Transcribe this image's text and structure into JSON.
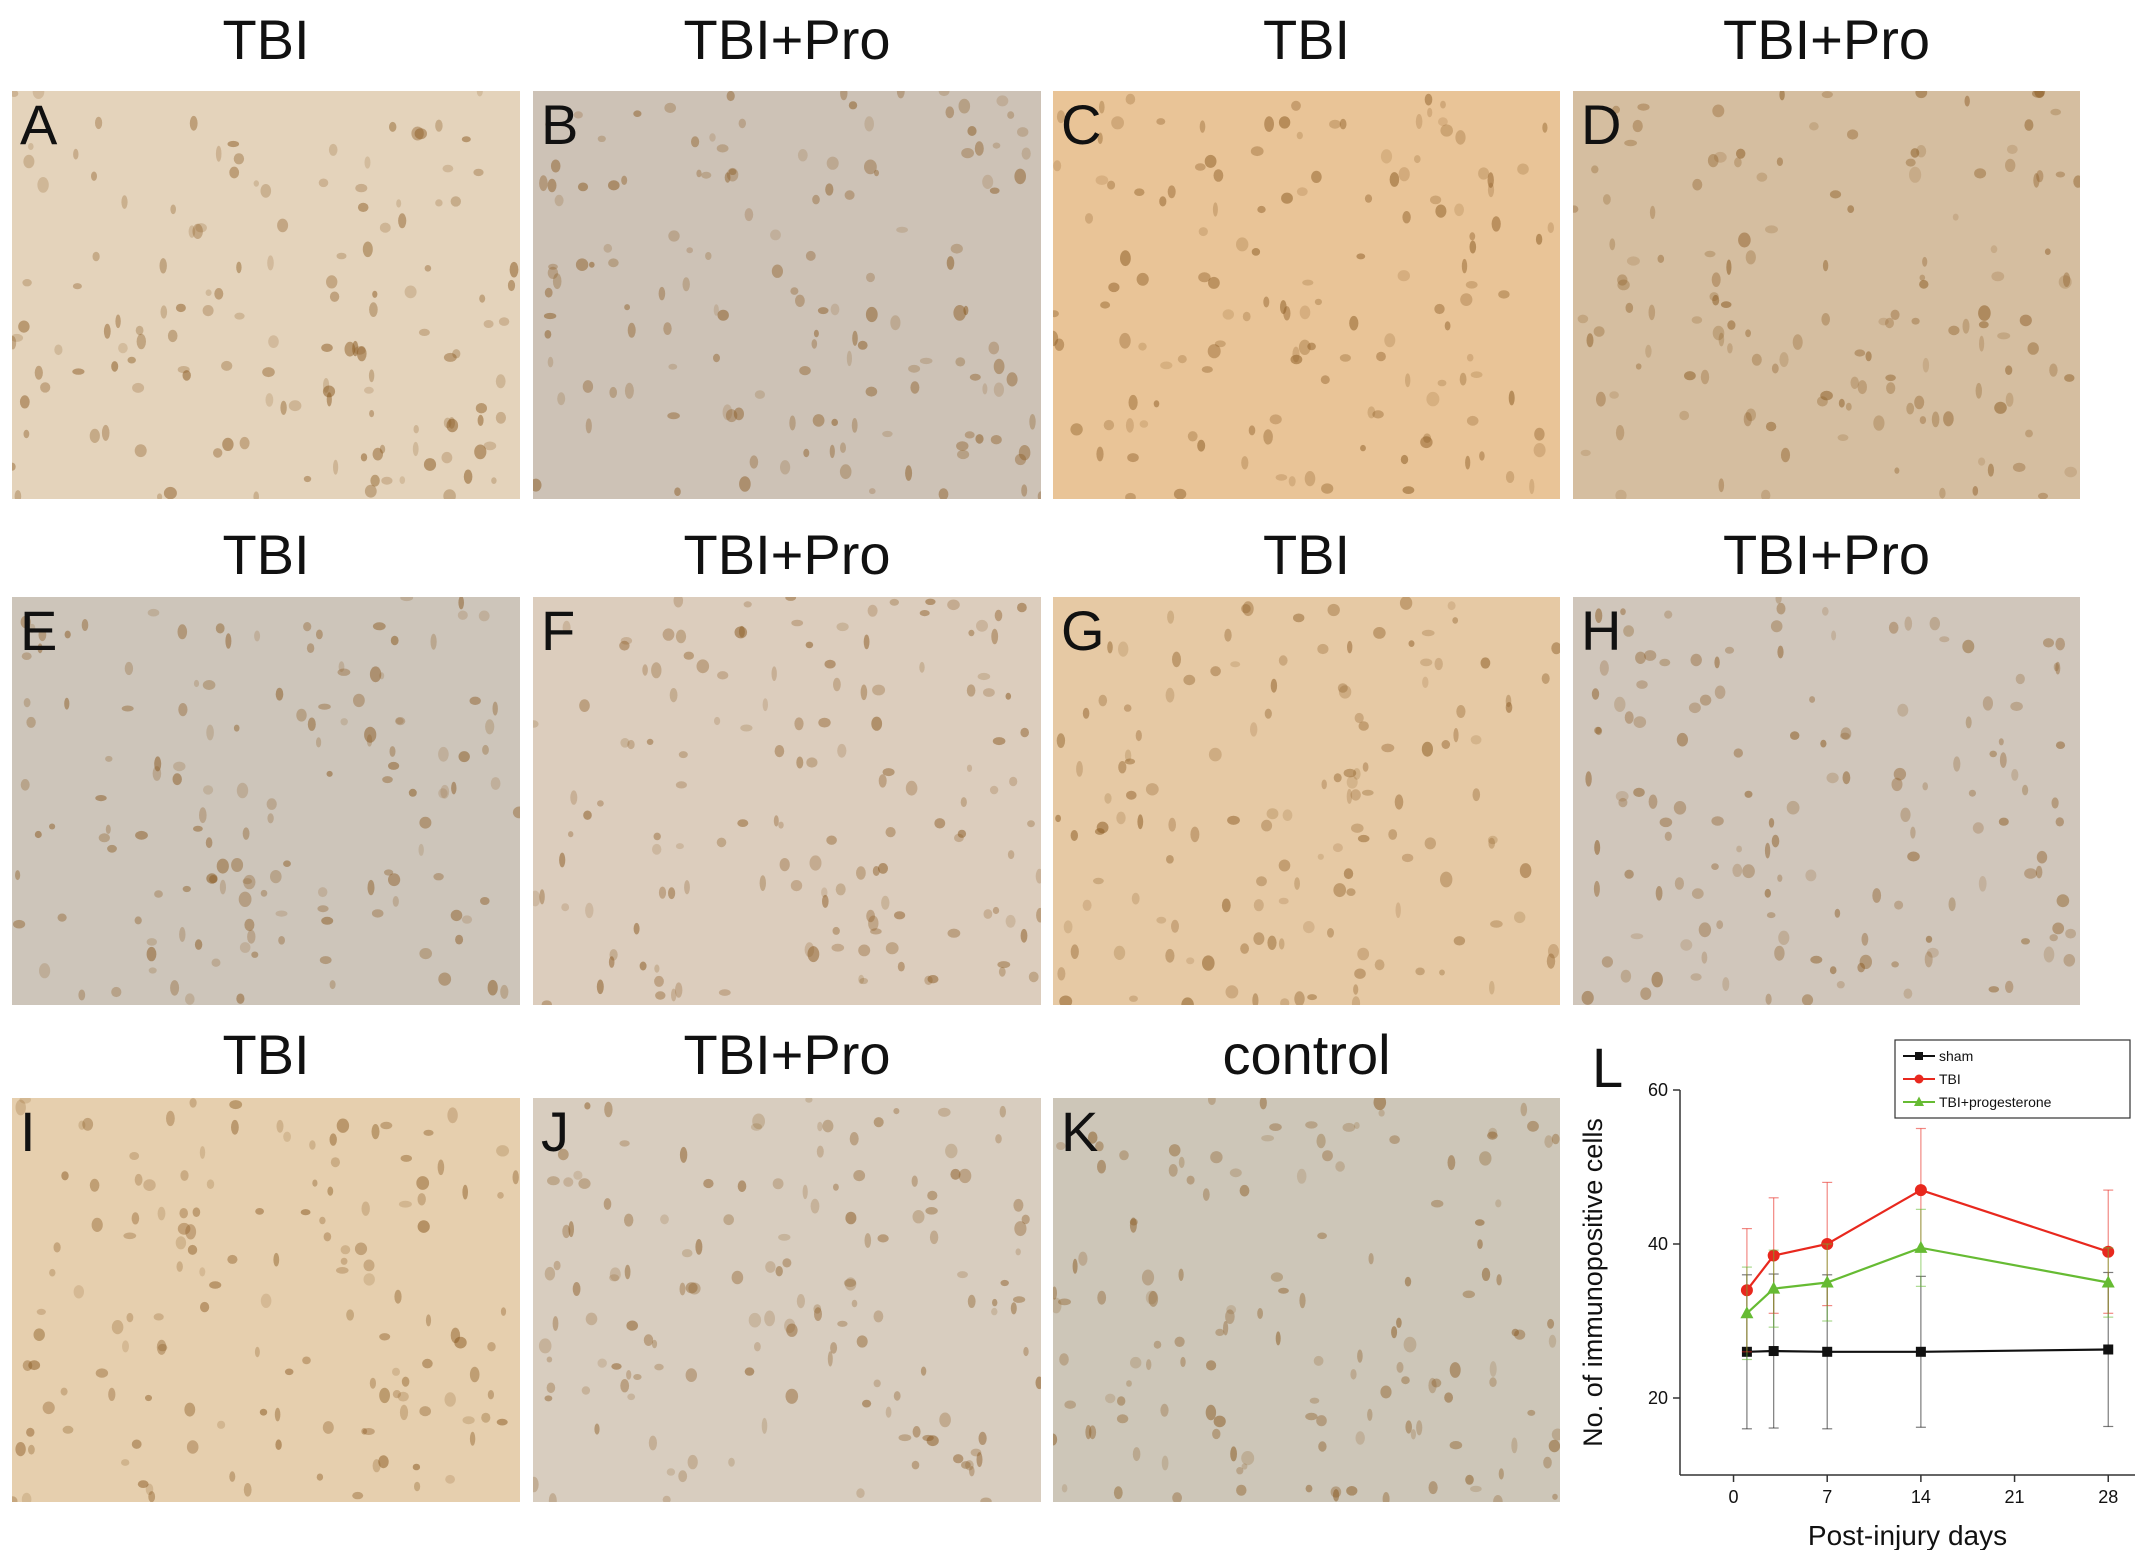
{
  "columns": [
    {
      "title": "TBI"
    },
    {
      "title": "TBI+Pro"
    },
    {
      "title": "TBI"
    },
    {
      "title": "TBI+Pro"
    }
  ],
  "rows": [
    {
      "titles": [
        "TBI",
        "TBI+Pro",
        "TBI",
        "TBI+Pro"
      ]
    },
    {
      "titles": [
        "TBI",
        "TBI+Pro",
        "TBI",
        "TBI+Pro"
      ]
    },
    {
      "titles": [
        "TBI",
        "TBI+Pro",
        "control",
        ""
      ]
    }
  ],
  "panels": [
    {
      "label": "A",
      "tint": "#e4d3bb"
    },
    {
      "label": "B",
      "tint": "#cdc2b6"
    },
    {
      "label": "C",
      "tint": "#e9c497"
    },
    {
      "label": "D",
      "tint": "#d5bea0"
    },
    {
      "label": "E",
      "tint": "#cdc5ba"
    },
    {
      "label": "F",
      "tint": "#dccdbd"
    },
    {
      "label": "G",
      "tint": "#e6c9a4"
    },
    {
      "label": "H",
      "tint": "#d0c6bb"
    },
    {
      "label": "I",
      "tint": "#e6cfae"
    },
    {
      "label": "J",
      "tint": "#d8cdbf"
    },
    {
      "label": "K",
      "tint": "#cdc6b8"
    }
  ],
  "chart_label": "L",
  "chart_data": {
    "type": "line",
    "xlabel": "Post-injury days",
    "ylabel": "No. of immunopositive cells",
    "xlim": [
      -4,
      30
    ],
    "ylim": [
      10,
      60
    ],
    "xticks": [
      0,
      7,
      14,
      21,
      28
    ],
    "yticks": [
      20,
      40,
      60
    ],
    "legend_position": "top-right",
    "series": [
      {
        "name": "sham",
        "color": "#111111",
        "marker": "square",
        "x": [
          1,
          3,
          7,
          14,
          28
        ],
        "y": [
          26,
          26.1,
          26,
          26,
          26.3
        ],
        "err": [
          10,
          10,
          10,
          9.8,
          10
        ]
      },
      {
        "name": "TBI",
        "color": "#e8281e",
        "marker": "circle",
        "x": [
          1,
          3,
          7,
          14,
          28
        ],
        "y": [
          34,
          38.5,
          40,
          47,
          39
        ],
        "err": [
          8,
          7.5,
          8,
          8,
          8
        ]
      },
      {
        "name": "TBI+progesterone",
        "color": "#66bb33",
        "marker": "triangle",
        "x": [
          1,
          3,
          7,
          14,
          28
        ],
        "y": [
          31,
          34.2,
          35,
          39.5,
          35
        ],
        "err": [
          6,
          5,
          5,
          5,
          4.5
        ]
      }
    ]
  }
}
